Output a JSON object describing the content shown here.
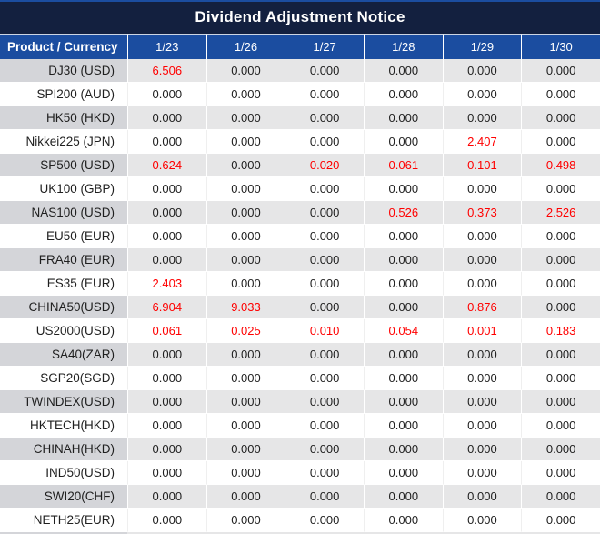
{
  "title": "Dividend Adjustment Notice",
  "colors": {
    "title_bg": "#13203f",
    "header_bg": "#1b4da0",
    "red_value": "#ff0000",
    "text": "#1f1f1f",
    "row_gray_label": "#d4d5d9",
    "row_gray_data": "#e6e6e7"
  },
  "table": {
    "header": {
      "product": "Product / Currency",
      "dates": [
        "1/23",
        "1/26",
        "1/27",
        "1/28",
        "1/29",
        "1/30"
      ]
    },
    "rows": [
      {
        "label": "DJ30 (USD)",
        "values": [
          "6.506",
          "0.000",
          "0.000",
          "0.000",
          "0.000",
          "0.000"
        ],
        "red_cols": [
          0
        ]
      },
      {
        "label": "SPI200 (AUD)",
        "values": [
          "0.000",
          "0.000",
          "0.000",
          "0.000",
          "0.000",
          "0.000"
        ],
        "red_cols": []
      },
      {
        "label": "HK50 (HKD)",
        "values": [
          "0.000",
          "0.000",
          "0.000",
          "0.000",
          "0.000",
          "0.000"
        ],
        "red_cols": []
      },
      {
        "label": "Nikkei225 (JPN)",
        "values": [
          "0.000",
          "0.000",
          "0.000",
          "0.000",
          "2.407",
          "0.000"
        ],
        "red_cols": [
          4
        ]
      },
      {
        "label": "SP500 (USD)",
        "values": [
          "0.624",
          "0.000",
          "0.020",
          "0.061",
          "0.101",
          "0.498"
        ],
        "red_cols": [
          0,
          2,
          3,
          4,
          5
        ]
      },
      {
        "label": "UK100 (GBP)",
        "values": [
          "0.000",
          "0.000",
          "0.000",
          "0.000",
          "0.000",
          "0.000"
        ],
        "red_cols": []
      },
      {
        "label": "NAS100 (USD)",
        "values": [
          "0.000",
          "0.000",
          "0.000",
          "0.526",
          "0.373",
          "2.526"
        ],
        "red_cols": [
          3,
          4,
          5
        ]
      },
      {
        "label": "EU50 (EUR)",
        "values": [
          "0.000",
          "0.000",
          "0.000",
          "0.000",
          "0.000",
          "0.000"
        ],
        "red_cols": []
      },
      {
        "label": "FRA40 (EUR)",
        "values": [
          "0.000",
          "0.000",
          "0.000",
          "0.000",
          "0.000",
          "0.000"
        ],
        "red_cols": []
      },
      {
        "label": "ES35 (EUR)",
        "values": [
          "2.403",
          "0.000",
          "0.000",
          "0.000",
          "0.000",
          "0.000"
        ],
        "red_cols": [
          0
        ]
      },
      {
        "label": "CHINA50(USD)",
        "values": [
          "6.904",
          "9.033",
          "0.000",
          "0.000",
          "0.876",
          "0.000"
        ],
        "red_cols": [
          0,
          1,
          4
        ]
      },
      {
        "label": "US2000(USD)",
        "values": [
          "0.061",
          "0.025",
          "0.010",
          "0.054",
          "0.001",
          "0.183"
        ],
        "red_cols": [
          0,
          1,
          2,
          3,
          4,
          5
        ]
      },
      {
        "label": "SA40(ZAR)",
        "values": [
          "0.000",
          "0.000",
          "0.000",
          "0.000",
          "0.000",
          "0.000"
        ],
        "red_cols": []
      },
      {
        "label": "SGP20(SGD)",
        "values": [
          "0.000",
          "0.000",
          "0.000",
          "0.000",
          "0.000",
          "0.000"
        ],
        "red_cols": []
      },
      {
        "label": "TWINDEX(USD)",
        "values": [
          "0.000",
          "0.000",
          "0.000",
          "0.000",
          "0.000",
          "0.000"
        ],
        "red_cols": []
      },
      {
        "label": "HKTECH(HKD)",
        "values": [
          "0.000",
          "0.000",
          "0.000",
          "0.000",
          "0.000",
          "0.000"
        ],
        "red_cols": []
      },
      {
        "label": "CHINAH(HKD)",
        "values": [
          "0.000",
          "0.000",
          "0.000",
          "0.000",
          "0.000",
          "0.000"
        ],
        "red_cols": []
      },
      {
        "label": "IND50(USD)",
        "values": [
          "0.000",
          "0.000",
          "0.000",
          "0.000",
          "0.000",
          "0.000"
        ],
        "red_cols": []
      },
      {
        "label": "SWI20(CHF)",
        "values": [
          "0.000",
          "0.000",
          "0.000",
          "0.000",
          "0.000",
          "0.000"
        ],
        "red_cols": []
      },
      {
        "label": "NETH25(EUR)",
        "values": [
          "0.000",
          "0.000",
          "0.000",
          "0.000",
          "0.000",
          "0.000"
        ],
        "red_cols": []
      }
    ]
  }
}
